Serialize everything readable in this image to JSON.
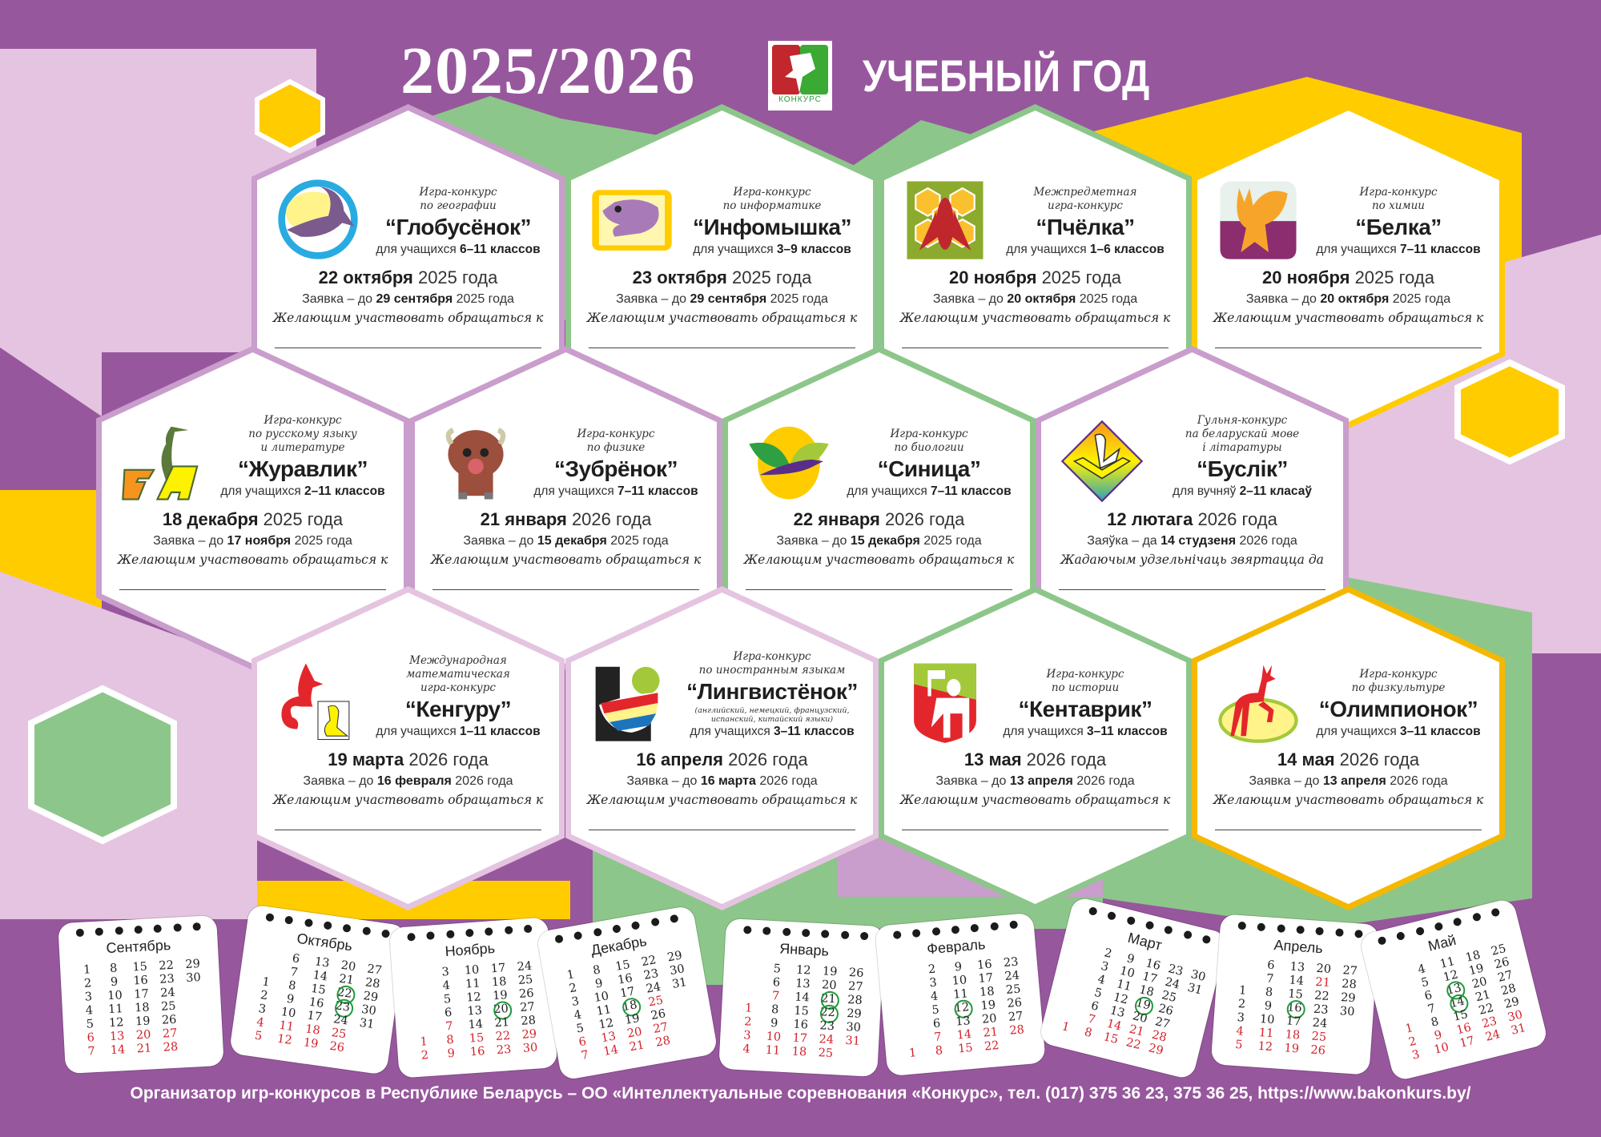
{
  "header": {
    "year": "2025/2026",
    "logo_text": "КОНКУРС",
    "subtitle": "УЧЕБНЫЙ ГОД"
  },
  "colors": {
    "background": "#97579d",
    "pink": "#e4c4e0",
    "lavender": "#c99dcc",
    "green": "#8dc68a",
    "yellow": "#ffcc00",
    "holiday_red": "#d1222b",
    "circle_green": "#1e9a3a"
  },
  "contests": [
    {
      "icon": "globe-whale-logo",
      "subtitle_lines": [
        "Игра-конкурс",
        "по географии"
      ],
      "title": "“Глобусёнок”",
      "grades_prefix": "для учащихся",
      "grades": "6–11 классов",
      "date_bold": "22 октября",
      "date_rest": "2025 года",
      "deadline_prefix": "Заявка – до",
      "deadline_bold": "29 сентября",
      "deadline_rest": "2025 года",
      "contact": "Желающим участвовать обращаться к",
      "border_color": "#c99dcc"
    },
    {
      "icon": "mouse-logo",
      "subtitle_lines": [
        "Игра-конкурс",
        "по информатике"
      ],
      "title": "“Инфомышка”",
      "grades_prefix": "для учащихся",
      "grades": "3–9 классов",
      "date_bold": "23 октября",
      "date_rest": "2025 года",
      "deadline_prefix": "Заявка – до",
      "deadline_bold": "29 сентября",
      "deadline_rest": "2025 года",
      "contact": "Желающим участвовать обращаться к",
      "border_color": "#8dc68a"
    },
    {
      "icon": "bee-logo",
      "subtitle_lines": [
        "Межпредметная",
        "игра-конкурс"
      ],
      "title": "“Пчёлка”",
      "grades_prefix": "для учащихся",
      "grades": "1–6 классов",
      "date_bold": "20 ноября",
      "date_rest": "2025 года",
      "deadline_prefix": "Заявка – до",
      "deadline_bold": "20 октября",
      "deadline_rest": "2025 года",
      "contact": "Желающим участвовать обращаться к",
      "border_color": "#8dc68a"
    },
    {
      "icon": "squirrel-logo",
      "subtitle_lines": [
        "Игра-конкурс",
        "по химии"
      ],
      "title": "“Белка”",
      "grades_prefix": "для учащихся",
      "grades": "7–11 классов",
      "date_bold": "20 ноября",
      "date_rest": "2025 года",
      "deadline_prefix": "Заявка – до",
      "deadline_bold": "20 октября",
      "deadline_rest": "2025 года",
      "contact": "Желающим участвовать обращаться к",
      "border_color": "#ffcc00"
    },
    {
      "icon": "crane-logo",
      "subtitle_lines": [
        "Игра-конкурс",
        "по русскому языку",
        "и литературе"
      ],
      "title": "“Журавлик”",
      "grades_prefix": "для учащихся",
      "grades": "2–11 классов",
      "date_bold": "18 декабря",
      "date_rest": "2025 года",
      "deadline_prefix": "Заявка – до",
      "deadline_bold": "17 ноября",
      "deadline_rest": "2025 года",
      "contact": "Желающим участвовать обращаться к",
      "border_color": "#c99dcc"
    },
    {
      "icon": "bison-logo",
      "subtitle_lines": [
        "Игра-конкурс",
        "по физике"
      ],
      "title": "“Зубрёнок”",
      "grades_prefix": "для учащихся",
      "grades": "7–11 классов",
      "date_bold": "21 января",
      "date_rest": "2026 года",
      "deadline_prefix": "Заявка – до",
      "deadline_bold": "15 декабря",
      "deadline_rest": "2025 года",
      "contact": "Желающим участвовать обращаться к",
      "border_color": "#c99dcc"
    },
    {
      "icon": "tit-bird-logo",
      "subtitle_lines": [
        "Игра-конкурс",
        "по биологии"
      ],
      "title": "“Синица”",
      "grades_prefix": "для учащихся",
      "grades": "7–11 классов",
      "date_bold": "22 января",
      "date_rest": "2026 года",
      "deadline_prefix": "Заявка – до",
      "deadline_bold": "15 декабря",
      "deadline_rest": "2025 года",
      "contact": "Желающим участвовать обращаться к",
      "border_color": "#8dc68a"
    },
    {
      "icon": "stork-logo",
      "subtitle_lines": [
        "Гульня-конкурс",
        "па беларускай мове",
        "і літаратуры"
      ],
      "title": "“Буслік”",
      "grades_prefix": "для вучняў",
      "grades": "2–11 класаў",
      "date_bold": "12 лютага",
      "date_rest": "2026 года",
      "deadline_prefix": "Заяўка – да",
      "deadline_bold": "14 студзеня",
      "deadline_rest": "2026 года",
      "contact": "Жадаючым удзельнічаць звяртацца да",
      "border_color": "#c99dcc"
    },
    {
      "icon": "kangaroo-logo",
      "subtitle_lines": [
        "Международная",
        "математическая",
        "игра-конкурс"
      ],
      "title": "“Кенгуру”",
      "grades_prefix": "для учащихся",
      "grades": "1–11 классов",
      "date_bold": "19 марта",
      "date_rest": "2026 года",
      "deadline_prefix": "Заявка – до",
      "deadline_bold": "16 февраля",
      "deadline_rest": "2026 года",
      "contact": "Желающим участвовать обращаться к",
      "border_color": "#e4c4e0"
    },
    {
      "icon": "parrot-letter-l-logo",
      "subtitle_lines": [
        "Игра-конкурс",
        "по иностранным языкам"
      ],
      "title": "“Лингвистёнок”",
      "note": "(английский, немецкий, французский, испанский, китайский языки)",
      "grades_prefix": "для учащихся",
      "grades": "3–11 классов",
      "date_bold": "16 апреля",
      "date_rest": "2026 года",
      "deadline_prefix": "Заявка – до",
      "deadline_bold": "16 марта",
      "deadline_rest": "2026 года",
      "contact": "Желающим участвовать обращаться к",
      "border_color": "#e4c4e0"
    },
    {
      "icon": "centaur-shield-logo",
      "subtitle_lines": [
        "Игра-конкурс",
        "по истории"
      ],
      "title": "“Кентаврик”",
      "grades_prefix": "для учащихся",
      "grades": "3–11 классов",
      "date_bold": "13 мая",
      "date_rest": "2026 года",
      "deadline_prefix": "Заявка – до",
      "deadline_bold": "13 апреля",
      "deadline_rest": "2026 года",
      "contact": "Желающим участвовать обращаться к",
      "border_color": "#8dc68a"
    },
    {
      "icon": "deer-logo",
      "subtitle_lines": [
        "Игра-конкурс",
        "по физкультуре"
      ],
      "title": "“Олимпионок”",
      "grades_prefix": "для учащихся",
      "grades": "3–11 классов",
      "date_bold": "14 мая",
      "date_rest": "2026 года",
      "deadline_prefix": "Заявка – до",
      "deadline_bold": "13 апреля",
      "deadline_rest": "2026 года",
      "contact": "Желающим участвовать обращаться к",
      "border_color": "#f5b800"
    }
  ],
  "calendars": [
    {
      "month": "Сентябрь",
      "weeks": [
        [
          1,
          2,
          3,
          4,
          5,
          6,
          7
        ],
        [
          8,
          9,
          10,
          11,
          12,
          13,
          14
        ],
        [
          15,
          16,
          17,
          18,
          19,
          20,
          21
        ],
        [
          22,
          23,
          24,
          25,
          26,
          27,
          28
        ],
        [
          29,
          30,
          null,
          null,
          null,
          null,
          null
        ]
      ],
      "red": [
        6,
        7,
        13,
        14,
        20,
        21,
        27,
        28
      ],
      "circled": []
    },
    {
      "month": "Октябрь",
      "weeks": [
        [
          null,
          null,
          1,
          2,
          3,
          4,
          5
        ],
        [
          6,
          7,
          8,
          9,
          10,
          11,
          12
        ],
        [
          13,
          14,
          15,
          16,
          17,
          18,
          19
        ],
        [
          20,
          21,
          22,
          23,
          24,
          25,
          26
        ],
        [
          27,
          28,
          29,
          30,
          31,
          null,
          null
        ]
      ],
      "red": [
        4,
        5,
        11,
        12,
        18,
        19,
        25,
        26
      ],
      "circled": [
        22,
        23
      ]
    },
    {
      "month": "Ноябрь",
      "weeks": [
        [
          null,
          null,
          null,
          null,
          null,
          1,
          2
        ],
        [
          3,
          4,
          5,
          6,
          7,
          8,
          9
        ],
        [
          10,
          11,
          12,
          13,
          14,
          15,
          16
        ],
        [
          17,
          18,
          19,
          20,
          21,
          22,
          23
        ],
        [
          24,
          25,
          26,
          27,
          28,
          29,
          30
        ]
      ],
      "red": [
        1,
        2,
        7,
        8,
        9,
        15,
        16,
        22,
        23,
        29,
        30
      ],
      "circled": [
        20
      ]
    },
    {
      "month": "Декабрь",
      "weeks": [
        [
          1,
          2,
          3,
          4,
          5,
          6,
          7
        ],
        [
          8,
          9,
          10,
          11,
          12,
          13,
          14
        ],
        [
          15,
          16,
          17,
          18,
          19,
          20,
          21
        ],
        [
          22,
          23,
          24,
          25,
          26,
          27,
          28
        ],
        [
          29,
          30,
          31,
          null,
          null,
          null,
          null
        ]
      ],
      "red": [
        6,
        7,
        13,
        14,
        20,
        21,
        25,
        27,
        28
      ],
      "circled": [
        18
      ]
    },
    {
      "month": "Январь",
      "weeks": [
        [
          null,
          null,
          null,
          1,
          2,
          3,
          4
        ],
        [
          5,
          6,
          7,
          8,
          9,
          10,
          11
        ],
        [
          12,
          13,
          14,
          15,
          16,
          17,
          18
        ],
        [
          19,
          20,
          21,
          22,
          23,
          24,
          25
        ],
        [
          26,
          27,
          28,
          29,
          30,
          31,
          null
        ]
      ],
      "red": [
        1,
        2,
        3,
        4,
        7,
        10,
        11,
        17,
        18,
        24,
        25,
        31
      ],
      "circled": [
        21,
        22
      ]
    },
    {
      "month": "Февраль",
      "weeks": [
        [
          null,
          null,
          null,
          null,
          null,
          null,
          1
        ],
        [
          2,
          3,
          4,
          5,
          6,
          7,
          8
        ],
        [
          9,
          10,
          11,
          12,
          13,
          14,
          15
        ],
        [
          16,
          17,
          18,
          19,
          20,
          21,
          22
        ],
        [
          23,
          24,
          25,
          26,
          27,
          28,
          null
        ]
      ],
      "red": [
        1,
        7,
        8,
        14,
        15,
        21,
        22,
        28
      ],
      "circled": [
        12
      ]
    },
    {
      "month": "Март",
      "weeks": [
        [
          null,
          null,
          null,
          null,
          null,
          null,
          1
        ],
        [
          2,
          3,
          4,
          5,
          6,
          7,
          8
        ],
        [
          9,
          10,
          11,
          12,
          13,
          14,
          15
        ],
        [
          16,
          17,
          18,
          19,
          20,
          21,
          22
        ],
        [
          23,
          24,
          25,
          26,
          27,
          28,
          29
        ],
        [
          30,
          31,
          null,
          null,
          null,
          null,
          null
        ]
      ],
      "red": [
        1,
        7,
        8,
        14,
        15,
        21,
        22,
        28,
        29
      ],
      "circled": [
        19
      ]
    },
    {
      "month": "Апрель",
      "weeks": [
        [
          null,
          null,
          1,
          2,
          3,
          4,
          5
        ],
        [
          6,
          7,
          8,
          9,
          10,
          11,
          12
        ],
        [
          13,
          14,
          15,
          16,
          17,
          18,
          19
        ],
        [
          20,
          21,
          22,
          23,
          24,
          25,
          26
        ],
        [
          27,
          28,
          29,
          30,
          null,
          null,
          null
        ]
      ],
      "red": [
        4,
        5,
        11,
        12,
        18,
        19,
        21,
        25,
        26
      ],
      "circled": [
        16
      ]
    },
    {
      "month": "Май",
      "weeks": [
        [
          null,
          null,
          null,
          null,
          1,
          2,
          3
        ],
        [
          4,
          5,
          6,
          7,
          8,
          9,
          10
        ],
        [
          11,
          12,
          13,
          14,
          15,
          16,
          17
        ],
        [
          18,
          19,
          20,
          21,
          22,
          23,
          24
        ],
        [
          25,
          26,
          27,
          28,
          29,
          30,
          31
        ]
      ],
      "red": [
        1,
        2,
        3,
        9,
        10,
        16,
        17,
        23,
        24,
        30,
        31
      ],
      "circled": [
        13,
        14
      ]
    }
  ],
  "footer": "Организатор игр-конкурсов в Республике Беларусь – ОО «Интеллектуальные соревнования «Конкурс», тел. (017) 375 36 23, 375 36 25, https://www.bakonkurs.by/"
}
